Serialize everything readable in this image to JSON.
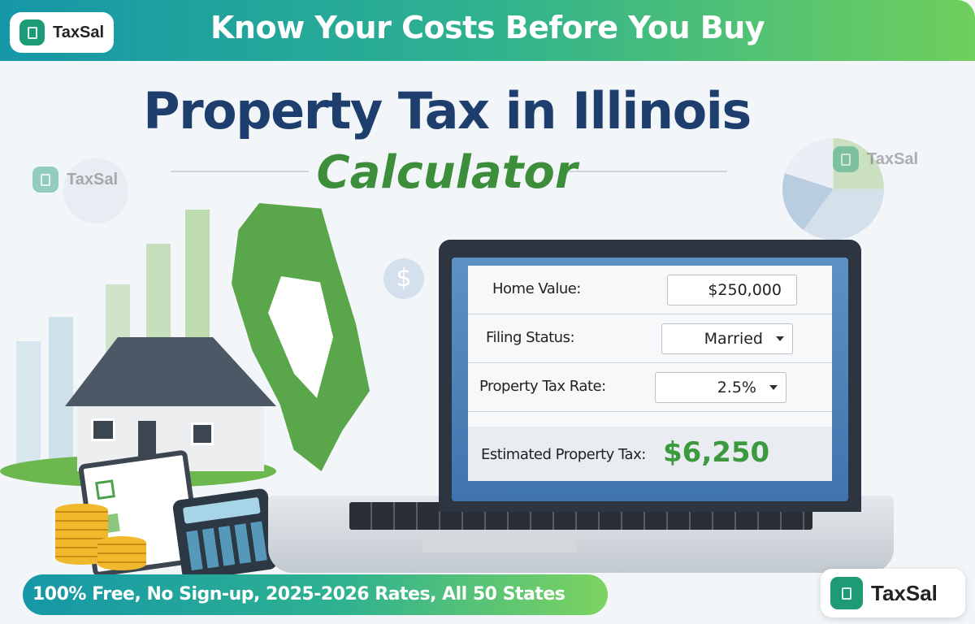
{
  "header": {
    "brand": "TaxSal",
    "tagline": "Know Your Costs Before You Buy"
  },
  "hero": {
    "title": "Property Tax in Illinois",
    "subtitle": "Calculator"
  },
  "watermarks": [
    "TaxSal",
    "TaxSal"
  ],
  "calculator": {
    "home_value_label": "Home Value:",
    "home_value": "$250,000",
    "filing_status_label": "Filing Status:",
    "filing_status": "Married",
    "rate_label": "Property Tax Rate:",
    "rate": "2.5%",
    "result_label": "Estimated Property Tax:",
    "result": "$6,250"
  },
  "footer": {
    "features": "100% Free, No Sign-up, 2025-2026 Rates, All 50 States",
    "brand": "TaxSal"
  },
  "colors": {
    "navy": "#1e3f6e",
    "green": "#3d8e3a",
    "teal": "#1597a8",
    "lime": "#6fcf5c"
  }
}
